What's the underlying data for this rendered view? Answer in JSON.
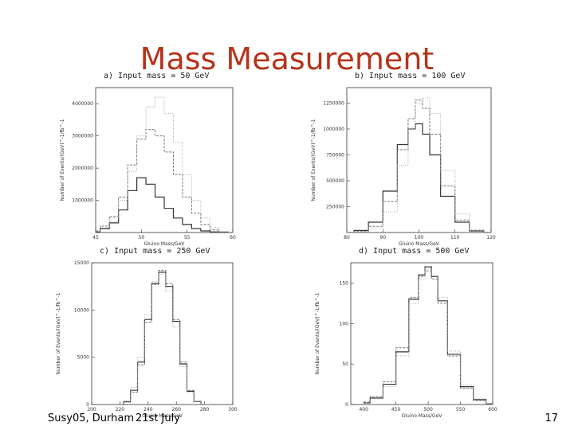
{
  "slide": {
    "title": "Mass Measurement",
    "footer_left": "Susy05, Durham",
    "footer_date": "21st July",
    "page_number": "17"
  },
  "chart_data": [
    {
      "type": "line",
      "title": "a) Input mass = 50 GeV",
      "xlabel": "Gluino Mass/GeV",
      "ylabel": "Number of Events/(GeV)^-1/fb^-1",
      "xlim": [
        45,
        60
      ],
      "ylim": [
        0,
        4500000
      ],
      "xticks": [
        "45",
        "50",
        "55",
        "60"
      ],
      "yticks": [
        "1000000",
        "2000000",
        "3000000",
        "4000000"
      ],
      "series": [
        {
          "style": "solid",
          "x": [
            45,
            46,
            47,
            48,
            49,
            50,
            51,
            52,
            53,
            54,
            55,
            56,
            57,
            58,
            59,
            60
          ],
          "values": [
            20000,
            120000,
            300000,
            700000,
            1300000,
            1700000,
            1500000,
            1100000,
            750000,
            450000,
            250000,
            120000,
            50000,
            20000,
            5000,
            0
          ]
        },
        {
          "style": "mid",
          "x": [
            45,
            46,
            47,
            48,
            49,
            50,
            51,
            52,
            53,
            54,
            55,
            56,
            57,
            58,
            59,
            60
          ],
          "values": [
            50000,
            200000,
            500000,
            1100000,
            2100000,
            2900000,
            3200000,
            3000000,
            2500000,
            1800000,
            1100000,
            600000,
            250000,
            80000,
            20000,
            0
          ]
        },
        {
          "style": "dotted",
          "x": [
            45,
            46,
            47,
            48,
            49,
            50,
            51,
            52,
            53,
            54,
            55,
            56,
            57,
            58,
            59,
            60
          ],
          "values": [
            30000,
            150000,
            450000,
            1000000,
            1900000,
            3000000,
            3900000,
            4200000,
            3700000,
            2800000,
            1800000,
            1000000,
            450000,
            150000,
            40000,
            0
          ]
        }
      ]
    },
    {
      "type": "line",
      "title": "b) Input mass = 100 GeV",
      "xlabel": "Gluino Mass/GeV",
      "ylabel": "Number of Events/(GeV)^-1/fb^-1",
      "xlim": [
        80,
        120
      ],
      "ylim": [
        0,
        1400000
      ],
      "xticks": [
        "80",
        "90",
        "100",
        "110",
        "120"
      ],
      "yticks": [
        "250000",
        "500000",
        "750000",
        "1000000",
        "1250000"
      ],
      "series": [
        {
          "style": "solid",
          "x": [
            80,
            84,
            88,
            92,
            96,
            98,
            100,
            102,
            104,
            108,
            112,
            116,
            120
          ],
          "values": [
            0,
            20000,
            100000,
            400000,
            850000,
            1000000,
            1050000,
            950000,
            750000,
            350000,
            100000,
            15000,
            0
          ]
        },
        {
          "style": "mid",
          "x": [
            80,
            84,
            88,
            92,
            96,
            98,
            100,
            102,
            104,
            108,
            112,
            116,
            120
          ],
          "values": [
            0,
            10000,
            60000,
            300000,
            800000,
            1100000,
            1280000,
            1200000,
            950000,
            450000,
            120000,
            20000,
            0
          ]
        },
        {
          "style": "dotted",
          "x": [
            80,
            84,
            88,
            92,
            96,
            98,
            100,
            102,
            104,
            108,
            112,
            116,
            120
          ],
          "values": [
            0,
            5000,
            40000,
            200000,
            650000,
            1000000,
            1250000,
            1300000,
            1150000,
            600000,
            180000,
            30000,
            0
          ]
        }
      ]
    },
    {
      "type": "line",
      "title": "c) Input mass = 250 GeV",
      "xlabel": "Gluino Mass/GeV",
      "ylabel": "Number of Events/(GeV)^-1/fb^-1",
      "xlim": [
        200,
        300
      ],
      "ylim": [
        0,
        15000
      ],
      "xticks": [
        "200",
        "220",
        "240",
        "260",
        "280",
        "300"
      ],
      "yticks": [
        "0",
        "5000",
        "10000",
        "15000"
      ],
      "series": [
        {
          "style": "solid",
          "x": [
            220,
            225,
            230,
            235,
            240,
            245,
            250,
            255,
            260,
            265,
            270,
            275,
            280
          ],
          "values": [
            0,
            300,
            1500,
            4500,
            9000,
            12800,
            14000,
            12500,
            8800,
            4300,
            1400,
            300,
            0
          ]
        },
        {
          "style": "mid",
          "x": [
            220,
            225,
            230,
            235,
            240,
            245,
            250,
            255,
            260,
            265,
            270,
            275,
            280
          ],
          "values": [
            0,
            250,
            1300,
            4200,
            8700,
            12700,
            14200,
            12800,
            9000,
            4500,
            1500,
            350,
            0
          ]
        },
        {
          "style": "dotted",
          "x": [
            220,
            225,
            230,
            235,
            240,
            245,
            250,
            255,
            260,
            265,
            270,
            275,
            280
          ],
          "values": [
            0,
            400,
            1800,
            5000,
            9500,
            13000,
            13800,
            12000,
            8200,
            4000,
            1300,
            300,
            0
          ]
        }
      ]
    },
    {
      "type": "line",
      "title": "d) Input mass = 500 GeV",
      "xlabel": "Gluino Mass/GeV",
      "ylabel": "Number of Events/(GeV)^-1/fb^-1",
      "xlim": [
        380,
        600
      ],
      "ylim": [
        0,
        175
      ],
      "xticks": [
        "400",
        "450",
        "500",
        "550",
        "600"
      ],
      "yticks": [
        "0",
        "50",
        "100",
        "150"
      ],
      "series": [
        {
          "style": "solid",
          "x": [
            400,
            420,
            440,
            460,
            480,
            490,
            500,
            510,
            520,
            540,
            560,
            580,
            600
          ],
          "values": [
            2,
            8,
            25,
            65,
            130,
            160,
            170,
            158,
            128,
            62,
            22,
            6,
            1
          ]
        },
        {
          "style": "mid",
          "x": [
            400,
            420,
            440,
            460,
            480,
            490,
            500,
            510,
            520,
            540,
            560,
            580,
            600
          ],
          "values": [
            3,
            10,
            28,
            70,
            132,
            158,
            165,
            155,
            125,
            60,
            20,
            5,
            1
          ]
        },
        {
          "style": "dotted",
          "x": [
            400,
            420,
            440,
            460,
            480,
            490,
            500,
            510,
            520,
            540,
            560,
            580,
            600
          ],
          "values": [
            2,
            7,
            22,
            60,
            125,
            155,
            168,
            160,
            132,
            66,
            24,
            7,
            1
          ]
        }
      ]
    }
  ]
}
